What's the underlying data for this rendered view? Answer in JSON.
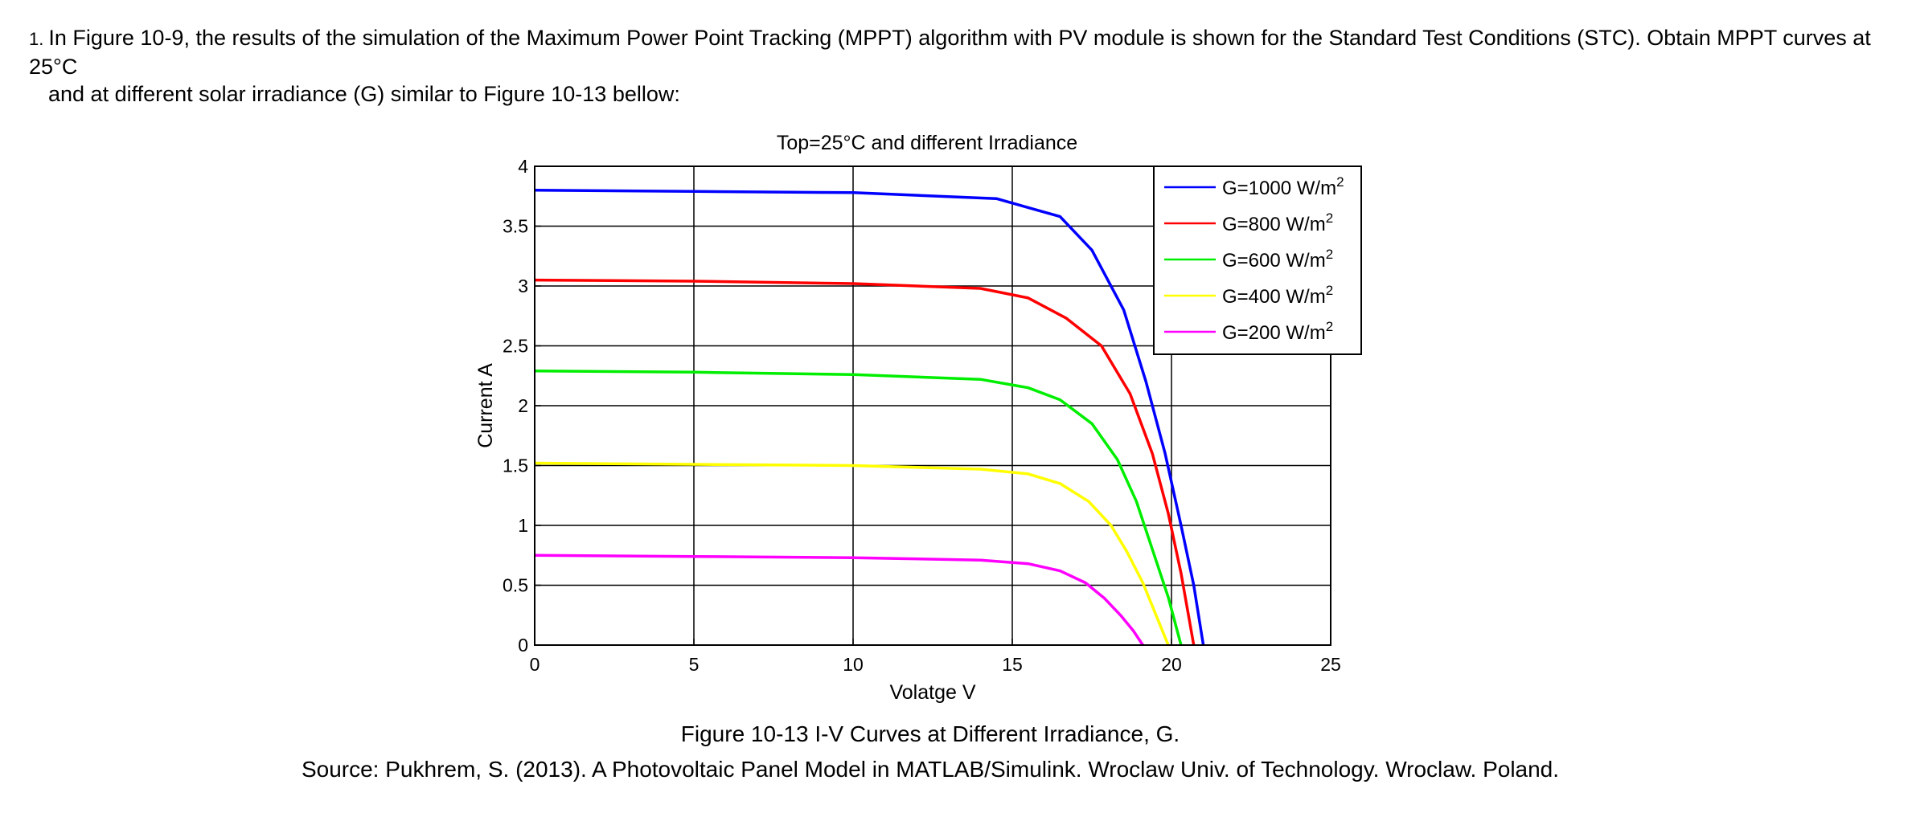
{
  "question": {
    "number": "1.",
    "line1": "In Figure 10-9, the results of the simulation of the Maximum Power Point Tracking (MPPT) algorithm with PV module is shown for the Standard Test Conditions (STC).  Obtain MPPT curves at 25°C",
    "line2": "and at different solar irradiance (G) similar to Figure 10-13 bellow:"
  },
  "figure": {
    "caption": "Figure 10-13 I-V Curves at Different Irradiance, G.",
    "source": "Source:  Pukhrem, S.  (2013).  A Photovoltaic Panel Model in MATLAB/Simulink.  Wroclaw Univ. of Technology.  Wroclaw.  Poland."
  },
  "chart_data": {
    "type": "line",
    "title": "Top=25°C and different Irradiance",
    "xlabel": "Volatge V",
    "ylabel": "Current A",
    "xlim": [
      0,
      25
    ],
    "ylim": [
      0,
      4
    ],
    "xticks": [
      0,
      5,
      10,
      15,
      20,
      25
    ],
    "yticks": [
      0,
      0.5,
      1,
      1.5,
      2,
      2.5,
      3,
      3.5,
      4
    ],
    "yticklabels": [
      "0",
      "0.5",
      "1",
      "1.5",
      "2",
      "2.5",
      "3",
      "3.5",
      "4"
    ],
    "grid": true,
    "legend_position": "top-right",
    "series": [
      {
        "name": "G=1000 W/m",
        "sup": "2",
        "color": "#0000ff",
        "x": [
          0,
          5,
          10,
          14.5,
          16.5,
          17.5,
          18.5,
          19.2,
          19.8,
          20.3,
          20.7,
          21.0
        ],
        "y": [
          3.8,
          3.79,
          3.78,
          3.73,
          3.58,
          3.3,
          2.8,
          2.2,
          1.6,
          1.0,
          0.5,
          0.0
        ]
      },
      {
        "name": "G=800 W/m",
        "sup": "2",
        "color": "#ff0000",
        "x": [
          0,
          5,
          10,
          14,
          15.5,
          16.7,
          17.8,
          18.7,
          19.4,
          19.9,
          20.3,
          20.7
        ],
        "y": [
          3.05,
          3.04,
          3.02,
          2.98,
          2.9,
          2.73,
          2.5,
          2.1,
          1.6,
          1.1,
          0.6,
          0.0
        ]
      },
      {
        "name": "G=600 W/m",
        "sup": "2",
        "color": "#00ee00",
        "x": [
          0,
          5,
          10,
          14,
          15.5,
          16.5,
          17.5,
          18.3,
          18.9,
          19.4,
          19.9,
          20.3
        ],
        "y": [
          2.29,
          2.28,
          2.26,
          2.22,
          2.15,
          2.05,
          1.85,
          1.55,
          1.2,
          0.8,
          0.4,
          0.0
        ]
      },
      {
        "name": "G=400 W/m",
        "sup": "2",
        "color": "#ffff00",
        "x": [
          0,
          5,
          10,
          14,
          15.5,
          16.5,
          17.4,
          18.1,
          18.6,
          19.1,
          19.5,
          19.9
        ],
        "y": [
          1.52,
          1.51,
          1.5,
          1.47,
          1.43,
          1.35,
          1.2,
          1.0,
          0.78,
          0.52,
          0.26,
          0.0
        ]
      },
      {
        "name": "G=200 W/m",
        "sup": "2",
        "color": "#ff00ff",
        "x": [
          0,
          5,
          10,
          14,
          15.5,
          16.5,
          17.3,
          17.9,
          18.4,
          18.8,
          19.1
        ],
        "y": [
          0.75,
          0.74,
          0.73,
          0.71,
          0.68,
          0.62,
          0.52,
          0.39,
          0.25,
          0.12,
          0.0
        ]
      }
    ]
  }
}
